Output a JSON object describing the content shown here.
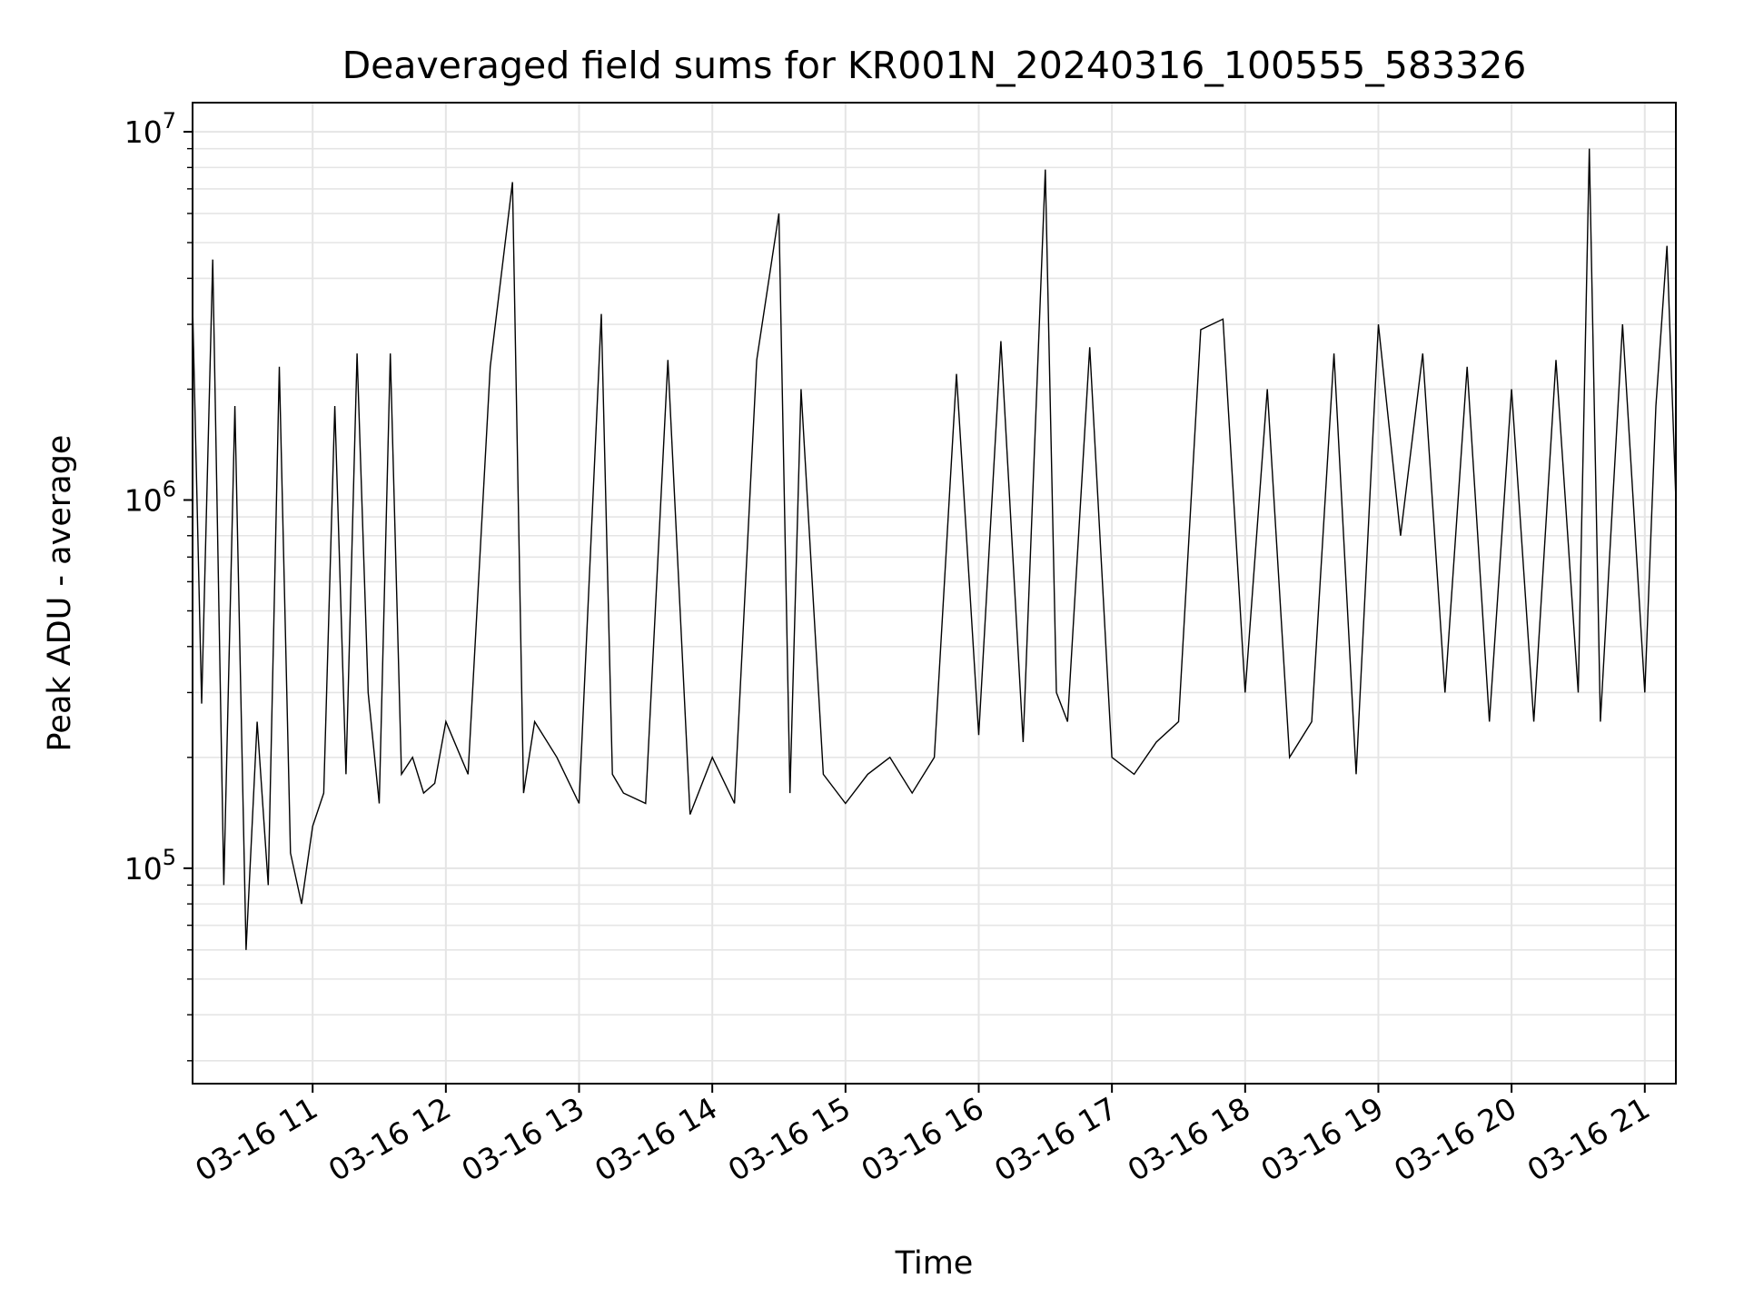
{
  "chart_data": {
    "type": "line",
    "title": "Deaveraged field sums for KR001N_20240316_100555_583326",
    "xlabel": "Time",
    "ylabel": "Peak ADU - average",
    "yscale": "log",
    "ylim": [
      26000,
      12000000
    ],
    "xlim": [
      "2024-03-16 10:05:55",
      "2024-03-16 21:14:00"
    ],
    "grid": true,
    "line_color": "#000000",
    "grid_color": "#e5e5e5",
    "x_ticks": [
      {
        "value": "2024-03-16 11:00",
        "label": "03-16 11"
      },
      {
        "value": "2024-03-16 12:00",
        "label": "03-16 12"
      },
      {
        "value": "2024-03-16 13:00",
        "label": "03-16 13"
      },
      {
        "value": "2024-03-16 14:00",
        "label": "03-16 14"
      },
      {
        "value": "2024-03-16 15:00",
        "label": "03-16 15"
      },
      {
        "value": "2024-03-16 16:00",
        "label": "03-16 16"
      },
      {
        "value": "2024-03-16 17:00",
        "label": "03-16 17"
      },
      {
        "value": "2024-03-16 18:00",
        "label": "03-16 18"
      },
      {
        "value": "2024-03-16 19:00",
        "label": "03-16 19"
      },
      {
        "value": "2024-03-16 20:00",
        "label": "03-16 20"
      },
      {
        "value": "2024-03-16 21:00",
        "label": "03-16 21"
      }
    ],
    "y_ticks": [
      {
        "value": 100000,
        "base": "10",
        "exp": "5"
      },
      {
        "value": 1000000,
        "base": "10",
        "exp": "6"
      },
      {
        "value": 10000000,
        "base": "10",
        "exp": "7"
      }
    ],
    "series": [
      {
        "x": [
          "2024-03-16 10:05:55",
          "2024-03-16 10:10",
          "2024-03-16 10:15",
          "2024-03-16 10:20",
          "2024-03-16 10:25",
          "2024-03-16 10:30",
          "2024-03-16 10:35",
          "2024-03-16 10:40",
          "2024-03-16 10:45",
          "2024-03-16 10:50",
          "2024-03-16 10:55",
          "2024-03-16 11:00",
          "2024-03-16 11:05",
          "2024-03-16 11:10",
          "2024-03-16 11:15",
          "2024-03-16 11:20",
          "2024-03-16 11:25",
          "2024-03-16 11:30",
          "2024-03-16 11:35",
          "2024-03-16 11:40",
          "2024-03-16 11:45",
          "2024-03-16 11:50",
          "2024-03-16 11:55",
          "2024-03-16 12:00",
          "2024-03-16 12:10",
          "2024-03-16 12:20",
          "2024-03-16 12:30",
          "2024-03-16 12:35",
          "2024-03-16 12:40",
          "2024-03-16 12:50",
          "2024-03-16 13:00",
          "2024-03-16 13:10",
          "2024-03-16 13:15",
          "2024-03-16 13:20",
          "2024-03-16 13:30",
          "2024-03-16 13:40",
          "2024-03-16 13:50",
          "2024-03-16 14:00",
          "2024-03-16 14:10",
          "2024-03-16 14:20",
          "2024-03-16 14:30",
          "2024-03-16 14:35",
          "2024-03-16 14:40",
          "2024-03-16 14:50",
          "2024-03-16 15:00",
          "2024-03-16 15:10",
          "2024-03-16 15:20",
          "2024-03-16 15:30",
          "2024-03-16 15:40",
          "2024-03-16 15:50",
          "2024-03-16 16:00",
          "2024-03-16 16:10",
          "2024-03-16 16:20",
          "2024-03-16 16:30",
          "2024-03-16 16:35",
          "2024-03-16 16:40",
          "2024-03-16 16:50",
          "2024-03-16 17:00",
          "2024-03-16 17:10",
          "2024-03-16 17:20",
          "2024-03-16 17:30",
          "2024-03-16 17:40",
          "2024-03-16 17:50",
          "2024-03-16 18:00",
          "2024-03-16 18:10",
          "2024-03-16 18:20",
          "2024-03-16 18:30",
          "2024-03-16 18:40",
          "2024-03-16 18:50",
          "2024-03-16 19:00",
          "2024-03-16 19:10",
          "2024-03-16 19:20",
          "2024-03-16 19:30",
          "2024-03-16 19:40",
          "2024-03-16 19:50",
          "2024-03-16 20:00",
          "2024-03-16 20:10",
          "2024-03-16 20:20",
          "2024-03-16 20:30",
          "2024-03-16 20:35",
          "2024-03-16 20:40",
          "2024-03-16 20:50",
          "2024-03-16 21:00",
          "2024-03-16 21:05",
          "2024-03-16 21:10",
          "2024-03-16 21:14"
        ],
        "y": [
          3400000,
          280000,
          4500000,
          90000,
          1800000,
          60000,
          250000,
          90000,
          2300000,
          110000,
          80000,
          130000,
          160000,
          1800000,
          180000,
          2500000,
          300000,
          150000,
          2500000,
          180000,
          200000,
          160000,
          170000,
          250000,
          180000,
          2300000,
          7300000,
          160000,
          250000,
          200000,
          150000,
          3200000,
          180000,
          160000,
          150000,
          2400000,
          140000,
          200000,
          150000,
          2400000,
          6000000,
          160000,
          2000000,
          180000,
          150000,
          180000,
          200000,
          160000,
          200000,
          2200000,
          230000,
          2700000,
          220000,
          7900000,
          300000,
          250000,
          2600000,
          200000,
          180000,
          220000,
          250000,
          2900000,
          3100000,
          300000,
          2000000,
          200000,
          250000,
          2500000,
          180000,
          3000000,
          800000,
          2500000,
          300000,
          2300000,
          250000,
          2000000,
          250000,
          2400000,
          300000,
          9000000,
          250000,
          3000000,
          300000,
          1800000,
          4900000,
          1000000
        ]
      }
    ]
  }
}
